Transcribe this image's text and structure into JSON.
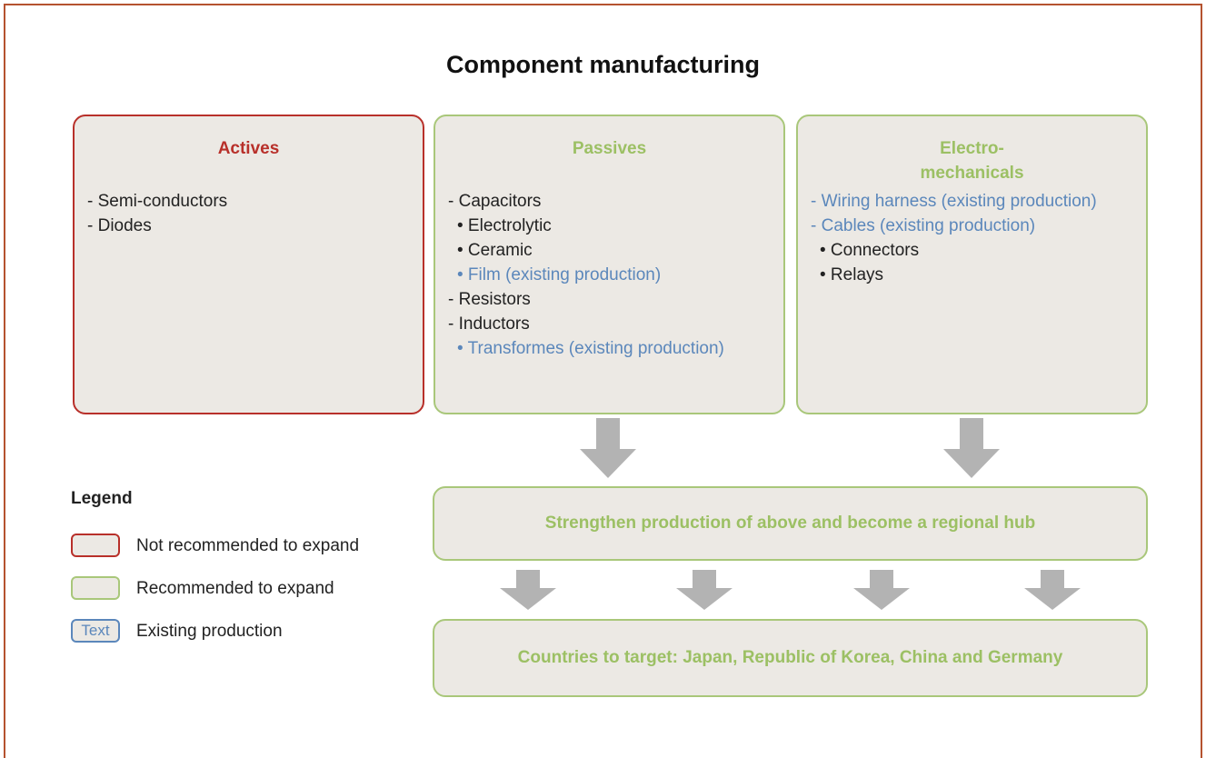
{
  "title": "Component manufacturing",
  "boxes": [
    {
      "title": "Actives",
      "items": [
        {
          "text": "- Semi-conductors",
          "existing": false
        },
        {
          "text": "- Diodes",
          "existing": false
        }
      ]
    },
    {
      "title": "Passives",
      "items": [
        {
          "text": "- Capacitors",
          "existing": false
        },
        {
          "text": "• Electrolytic",
          "existing": false,
          "indent": true
        },
        {
          "text": "• Ceramic",
          "existing": false,
          "indent": true
        },
        {
          "text": "• Film (existing production)",
          "existing": true,
          "indent": true
        },
        {
          "text": "- Resistors",
          "existing": false
        },
        {
          "text": "- Inductors",
          "existing": false
        },
        {
          "text": "• Transformes (existing production)",
          "existing": true,
          "indent": true
        }
      ]
    },
    {
      "title": "Electro-\nmechanicals",
      "items": [
        {
          "text": "- Wiring harness (existing production)",
          "existing": true
        },
        {
          "text": "- Cables (existing production)",
          "existing": true
        },
        {
          "text": "• Connectors",
          "existing": false,
          "indent": true
        },
        {
          "text": "• Relays",
          "existing": false,
          "indent": true
        }
      ]
    }
  ],
  "hub": "Strengthen production of above and become a regional hub",
  "targets": "Countries to target: Japan, Republic of Korea, China and Germany",
  "legend": {
    "title": "Legend",
    "sample": "Text",
    "items": [
      "Not recommended to expand",
      "Recommended to expand",
      "Existing production"
    ]
  }
}
